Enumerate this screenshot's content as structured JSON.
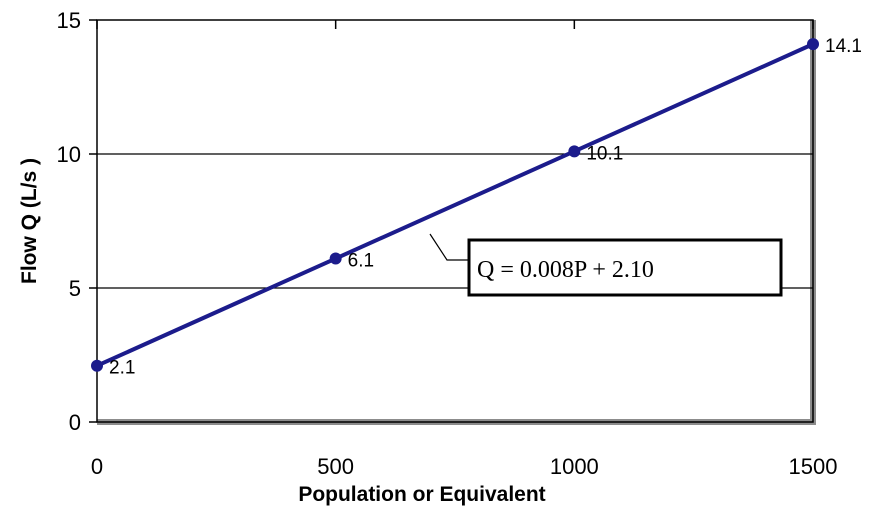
{
  "chart_data": {
    "type": "line",
    "title": "",
    "xlabel": "Population or Equivalent",
    "ylabel": "Flow Q (L/s )",
    "xlim": [
      0,
      1500
    ],
    "ylim": [
      0,
      15
    ],
    "xticks": [
      0,
      500,
      1000,
      1500
    ],
    "yticks": [
      0,
      5,
      10,
      15
    ],
    "grid": "horizontal",
    "series": [
      {
        "x": [
          0,
          500,
          1000,
          1500
        ],
        "values": [
          2.1,
          6.1,
          10.1,
          14.1
        ],
        "labels": [
          "2.1",
          "6.1",
          "10.1",
          "14.1"
        ],
        "color": "#1c1c8c"
      }
    ],
    "annotation": "Q = 0.008P + 2.10"
  }
}
